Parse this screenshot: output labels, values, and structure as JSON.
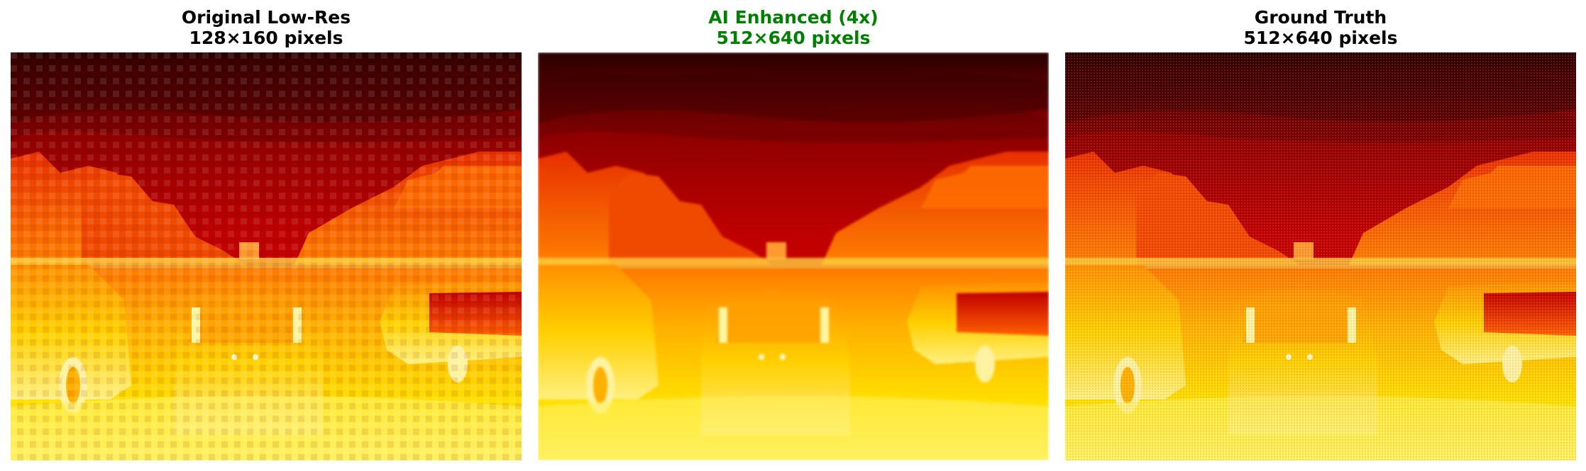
{
  "panels": [
    {
      "title_line1": "Original Low-Res",
      "title_line2": "128×160 pixels",
      "title_color": "#000000",
      "image_name": "low-res-thermal-street-image"
    },
    {
      "title_line1": "AI Enhanced (4x)",
      "title_line2": "512×640 pixels",
      "title_color": "#008000",
      "image_name": "ai-enhanced-thermal-street-image"
    },
    {
      "title_line1": "Ground Truth",
      "title_line2": "512×640 pixels",
      "title_color": "#000000",
      "image_name": "ground-truth-thermal-street-image"
    }
  ],
  "colormap": {
    "dark": "#1a0000",
    "red": "#b30000",
    "orange": "#ff5500",
    "yellow": "#ffd000",
    "white": "#ffffd0"
  }
}
